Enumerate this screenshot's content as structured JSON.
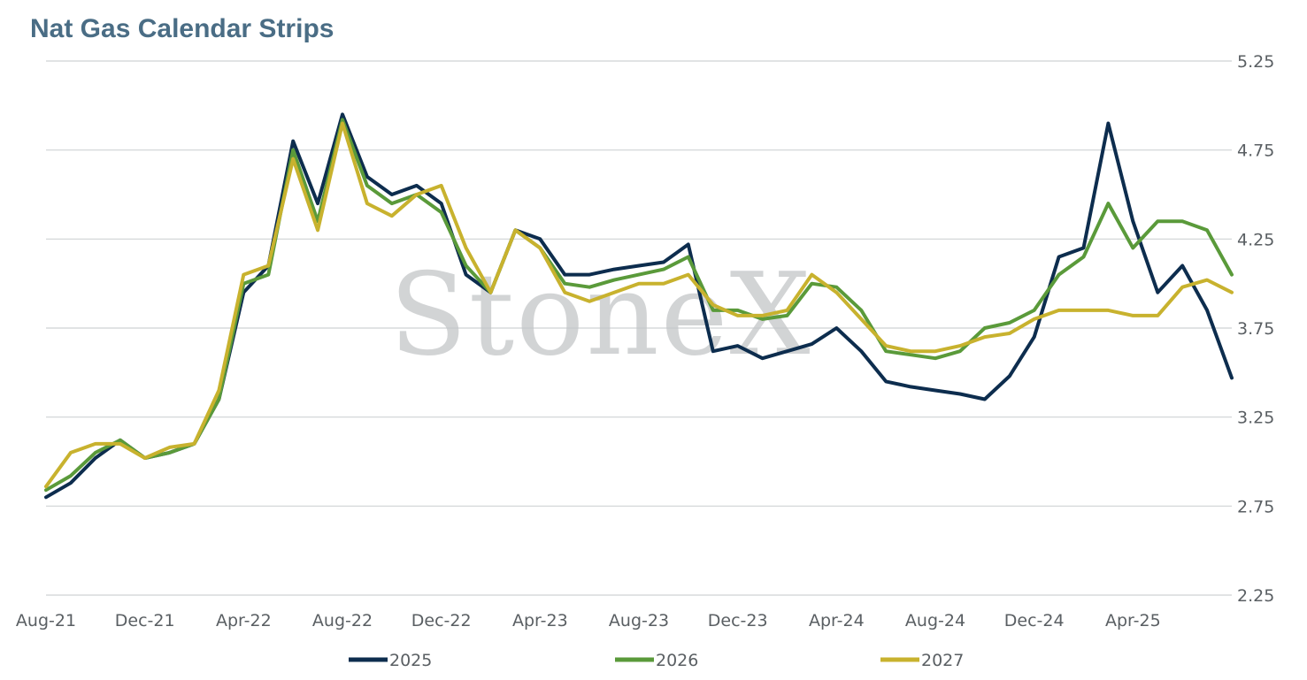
{
  "chart_data": {
    "type": "line",
    "title": "Nat Gas Calendar Strips",
    "xlabel": "",
    "ylabel": "",
    "x_range": [
      "2021-08",
      "2025-08"
    ],
    "x_ticks": [
      "Aug-21",
      "Dec-21",
      "Apr-22",
      "Aug-22",
      "Dec-22",
      "Apr-23",
      "Aug-23",
      "Dec-23",
      "Apr-24",
      "Aug-24",
      "Dec-24",
      "Apr-25"
    ],
    "y_ticks": [
      "2.25",
      "2.75",
      "3.25",
      "3.75",
      "4.25",
      "4.75",
      "5.25"
    ],
    "ylim": [
      2.25,
      5.25
    ],
    "y_axis_position": "right",
    "grid": "horizontal",
    "legend_position": "bottom",
    "watermark": "StoneX",
    "x": [
      "2021-08",
      "2021-09",
      "2021-10",
      "2021-11",
      "2021-12",
      "2022-01",
      "2022-02",
      "2022-03",
      "2022-04",
      "2022-05",
      "2022-06",
      "2022-07",
      "2022-08",
      "2022-09",
      "2022-10",
      "2022-11",
      "2022-12",
      "2023-01",
      "2023-02",
      "2023-03",
      "2023-04",
      "2023-05",
      "2023-06",
      "2023-07",
      "2023-08",
      "2023-09",
      "2023-10",
      "2023-11",
      "2023-12",
      "2024-01",
      "2024-02",
      "2024-03",
      "2024-04",
      "2024-05",
      "2024-06",
      "2024-07",
      "2024-08",
      "2024-09",
      "2024-10",
      "2024-11",
      "2024-12",
      "2025-01",
      "2025-02",
      "2025-03",
      "2025-04",
      "2025-05",
      "2025-06",
      "2025-07",
      "2025-08"
    ],
    "series": [
      {
        "name": "2025",
        "color": "#0d2d4e",
        "values": [
          2.8,
          2.88,
          3.02,
          3.12,
          3.02,
          3.05,
          3.1,
          3.35,
          3.95,
          4.1,
          4.8,
          4.45,
          4.95,
          4.6,
          4.5,
          4.55,
          4.45,
          4.05,
          3.95,
          4.3,
          4.25,
          4.05,
          4.05,
          4.08,
          4.1,
          4.12,
          4.22,
          3.62,
          3.65,
          3.58,
          3.62,
          3.66,
          3.75,
          3.62,
          3.45,
          3.42,
          3.4,
          3.38,
          3.35,
          3.48,
          3.7,
          4.15,
          4.2,
          4.9,
          4.35,
          3.95,
          4.1,
          3.85,
          3.47
        ]
      },
      {
        "name": "2026",
        "color": "#5a9a3a",
        "values": [
          2.84,
          2.92,
          3.05,
          3.12,
          3.02,
          3.05,
          3.1,
          3.35,
          4.0,
          4.05,
          4.75,
          4.35,
          4.92,
          4.55,
          4.45,
          4.5,
          4.4,
          4.1,
          3.95,
          4.3,
          4.2,
          4.0,
          3.98,
          4.02,
          4.05,
          4.08,
          4.15,
          3.85,
          3.85,
          3.8,
          3.82,
          4.0,
          3.98,
          3.85,
          3.62,
          3.6,
          3.58,
          3.62,
          3.75,
          3.78,
          3.85,
          4.05,
          4.15,
          4.45,
          4.2,
          4.35,
          4.35,
          4.3,
          4.05
        ]
      },
      {
        "name": "2027",
        "color": "#c8b22e",
        "values": [
          2.86,
          3.05,
          3.1,
          3.1,
          3.02,
          3.08,
          3.1,
          3.4,
          4.05,
          4.1,
          4.7,
          4.3,
          4.9,
          4.45,
          4.38,
          4.5,
          4.55,
          4.2,
          3.95,
          4.3,
          4.2,
          3.95,
          3.9,
          3.95,
          4.0,
          4.0,
          4.05,
          3.88,
          3.82,
          3.82,
          3.85,
          4.05,
          3.95,
          3.8,
          3.65,
          3.62,
          3.62,
          3.65,
          3.7,
          3.72,
          3.8,
          3.85,
          3.85,
          3.85,
          3.82,
          3.82,
          3.98,
          4.02,
          3.95
        ]
      }
    ]
  }
}
